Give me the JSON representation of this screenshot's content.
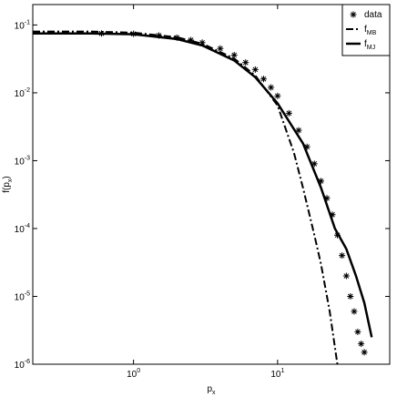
{
  "chart_data": {
    "type": "line",
    "x_label": "p",
    "x_label_sub": "x",
    "y_label": "f(p",
    "y_label_sub": "x",
    "y_label_end": ")",
    "xlog": true,
    "ylog": true,
    "xlim": [
      0.2,
      60
    ],
    "ylim": [
      1e-06,
      0.2
    ],
    "xticks": [
      {
        "value": 1,
        "label": "10",
        "exponent": "0"
      },
      {
        "value": 10,
        "label": "10",
        "exponent": "1"
      }
    ],
    "yticks": [
      {
        "value": 0.1,
        "label": "10",
        "exponent": "-1"
      },
      {
        "value": 0.01,
        "label": "10",
        "exponent": "-2"
      },
      {
        "value": 0.001,
        "label": "10",
        "exponent": "-3"
      },
      {
        "value": 0.0001,
        "label": "10",
        "exponent": "-4"
      },
      {
        "value": 1e-05,
        "label": "10",
        "exponent": "-5"
      },
      {
        "value": 1e-06,
        "label": "10",
        "exponent": "-6"
      }
    ],
    "legend": "upper right",
    "series": [
      {
        "name": "data",
        "sub": "",
        "color": "#000000",
        "style": "asterisk",
        "x": [
          0.6,
          1,
          1.5,
          2,
          2.5,
          3,
          4,
          5,
          6,
          7,
          8,
          9,
          10,
          12,
          14,
          16,
          18,
          20,
          22,
          24,
          26,
          28,
          30,
          32,
          34,
          36,
          38,
          40
        ],
        "values": [
          0.075,
          0.074,
          0.07,
          0.065,
          0.06,
          0.055,
          0.045,
          0.036,
          0.028,
          0.022,
          0.016,
          0.012,
          0.009,
          0.005,
          0.0028,
          0.0016,
          0.0009,
          0.0005,
          0.00028,
          0.00016,
          8e-05,
          4e-05,
          2e-05,
          1e-05,
          6e-06,
          3e-06,
          2e-06,
          1.5e-06
        ]
      },
      {
        "name": "f",
        "sub": "MB",
        "color": "#000000",
        "style": "dashdot",
        "x": [
          0.2,
          0.5,
          1,
          2,
          3,
          5,
          7,
          10,
          13,
          15,
          18,
          20,
          23,
          26
        ],
        "values": [
          0.08,
          0.08,
          0.077,
          0.066,
          0.053,
          0.032,
          0.018,
          0.0065,
          0.0013,
          0.0004,
          8e-05,
          3e-05,
          6e-06,
          1e-06
        ]
      },
      {
        "name": "f",
        "sub": "MJ",
        "color": "#000000",
        "style": "solid",
        "x": [
          0.2,
          0.5,
          1,
          2,
          3,
          5,
          7,
          10,
          15,
          20,
          25,
          30,
          35,
          40,
          45
        ],
        "values": [
          0.075,
          0.075,
          0.073,
          0.062,
          0.05,
          0.03,
          0.017,
          0.007,
          0.0018,
          0.0004,
          0.0001,
          5e-05,
          2e-05,
          8e-06,
          2.5e-06
        ]
      }
    ]
  }
}
